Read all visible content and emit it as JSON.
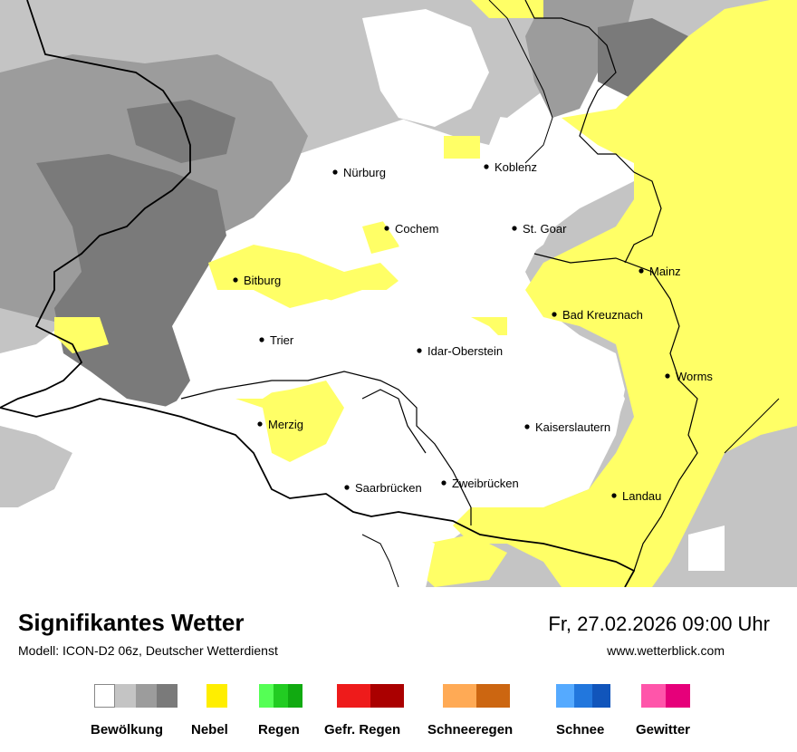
{
  "map": {
    "cities": [
      {
        "name": "Nürburg"
      },
      {
        "name": "Koblenz"
      },
      {
        "name": "Cochem"
      },
      {
        "name": "St. Goar"
      },
      {
        "name": "Mainz"
      },
      {
        "name": "Bitburg"
      },
      {
        "name": "Bad Kreuznach"
      },
      {
        "name": "Trier"
      },
      {
        "name": "Idar-Oberstein"
      },
      {
        "name": "Worms"
      },
      {
        "name": "Merzig"
      },
      {
        "name": "Kaiserslautern"
      },
      {
        "name": "Saarbrücken"
      },
      {
        "name": "Zweibrücken"
      },
      {
        "name": "Landau"
      }
    ]
  },
  "footer": {
    "title": "Signifikantes Wetter",
    "model": "Modell: ICON-D2 06z, Deutscher Wetterdienst",
    "datetime": "Fr, 27.02.2026 09:00 Uhr",
    "website": "www.wetterblick.com"
  },
  "legend": [
    {
      "label": "Bewölkung",
      "colors": [
        "#ffffff",
        "#c4c4c4",
        "#9c9c9c",
        "#7a7a7a"
      ]
    },
    {
      "label": "Nebel",
      "colors": [
        "#ffee00"
      ]
    },
    {
      "label": "Regen",
      "colors": [
        "#55ff55",
        "#22cc22",
        "#11aa11"
      ]
    },
    {
      "label": "Gefr. Regen",
      "colors": [
        "#ee1b1b",
        "#aa0000"
      ]
    },
    {
      "label": "Schneeregen",
      "colors": [
        "#ffaa55",
        "#cc6611"
      ]
    },
    {
      "label": "Schnee",
      "colors": [
        "#55aaff",
        "#2277dd",
        "#1155bb"
      ]
    },
    {
      "label": "Gewitter",
      "colors": [
        "#ff55aa",
        "#e6007a"
      ]
    }
  ]
}
